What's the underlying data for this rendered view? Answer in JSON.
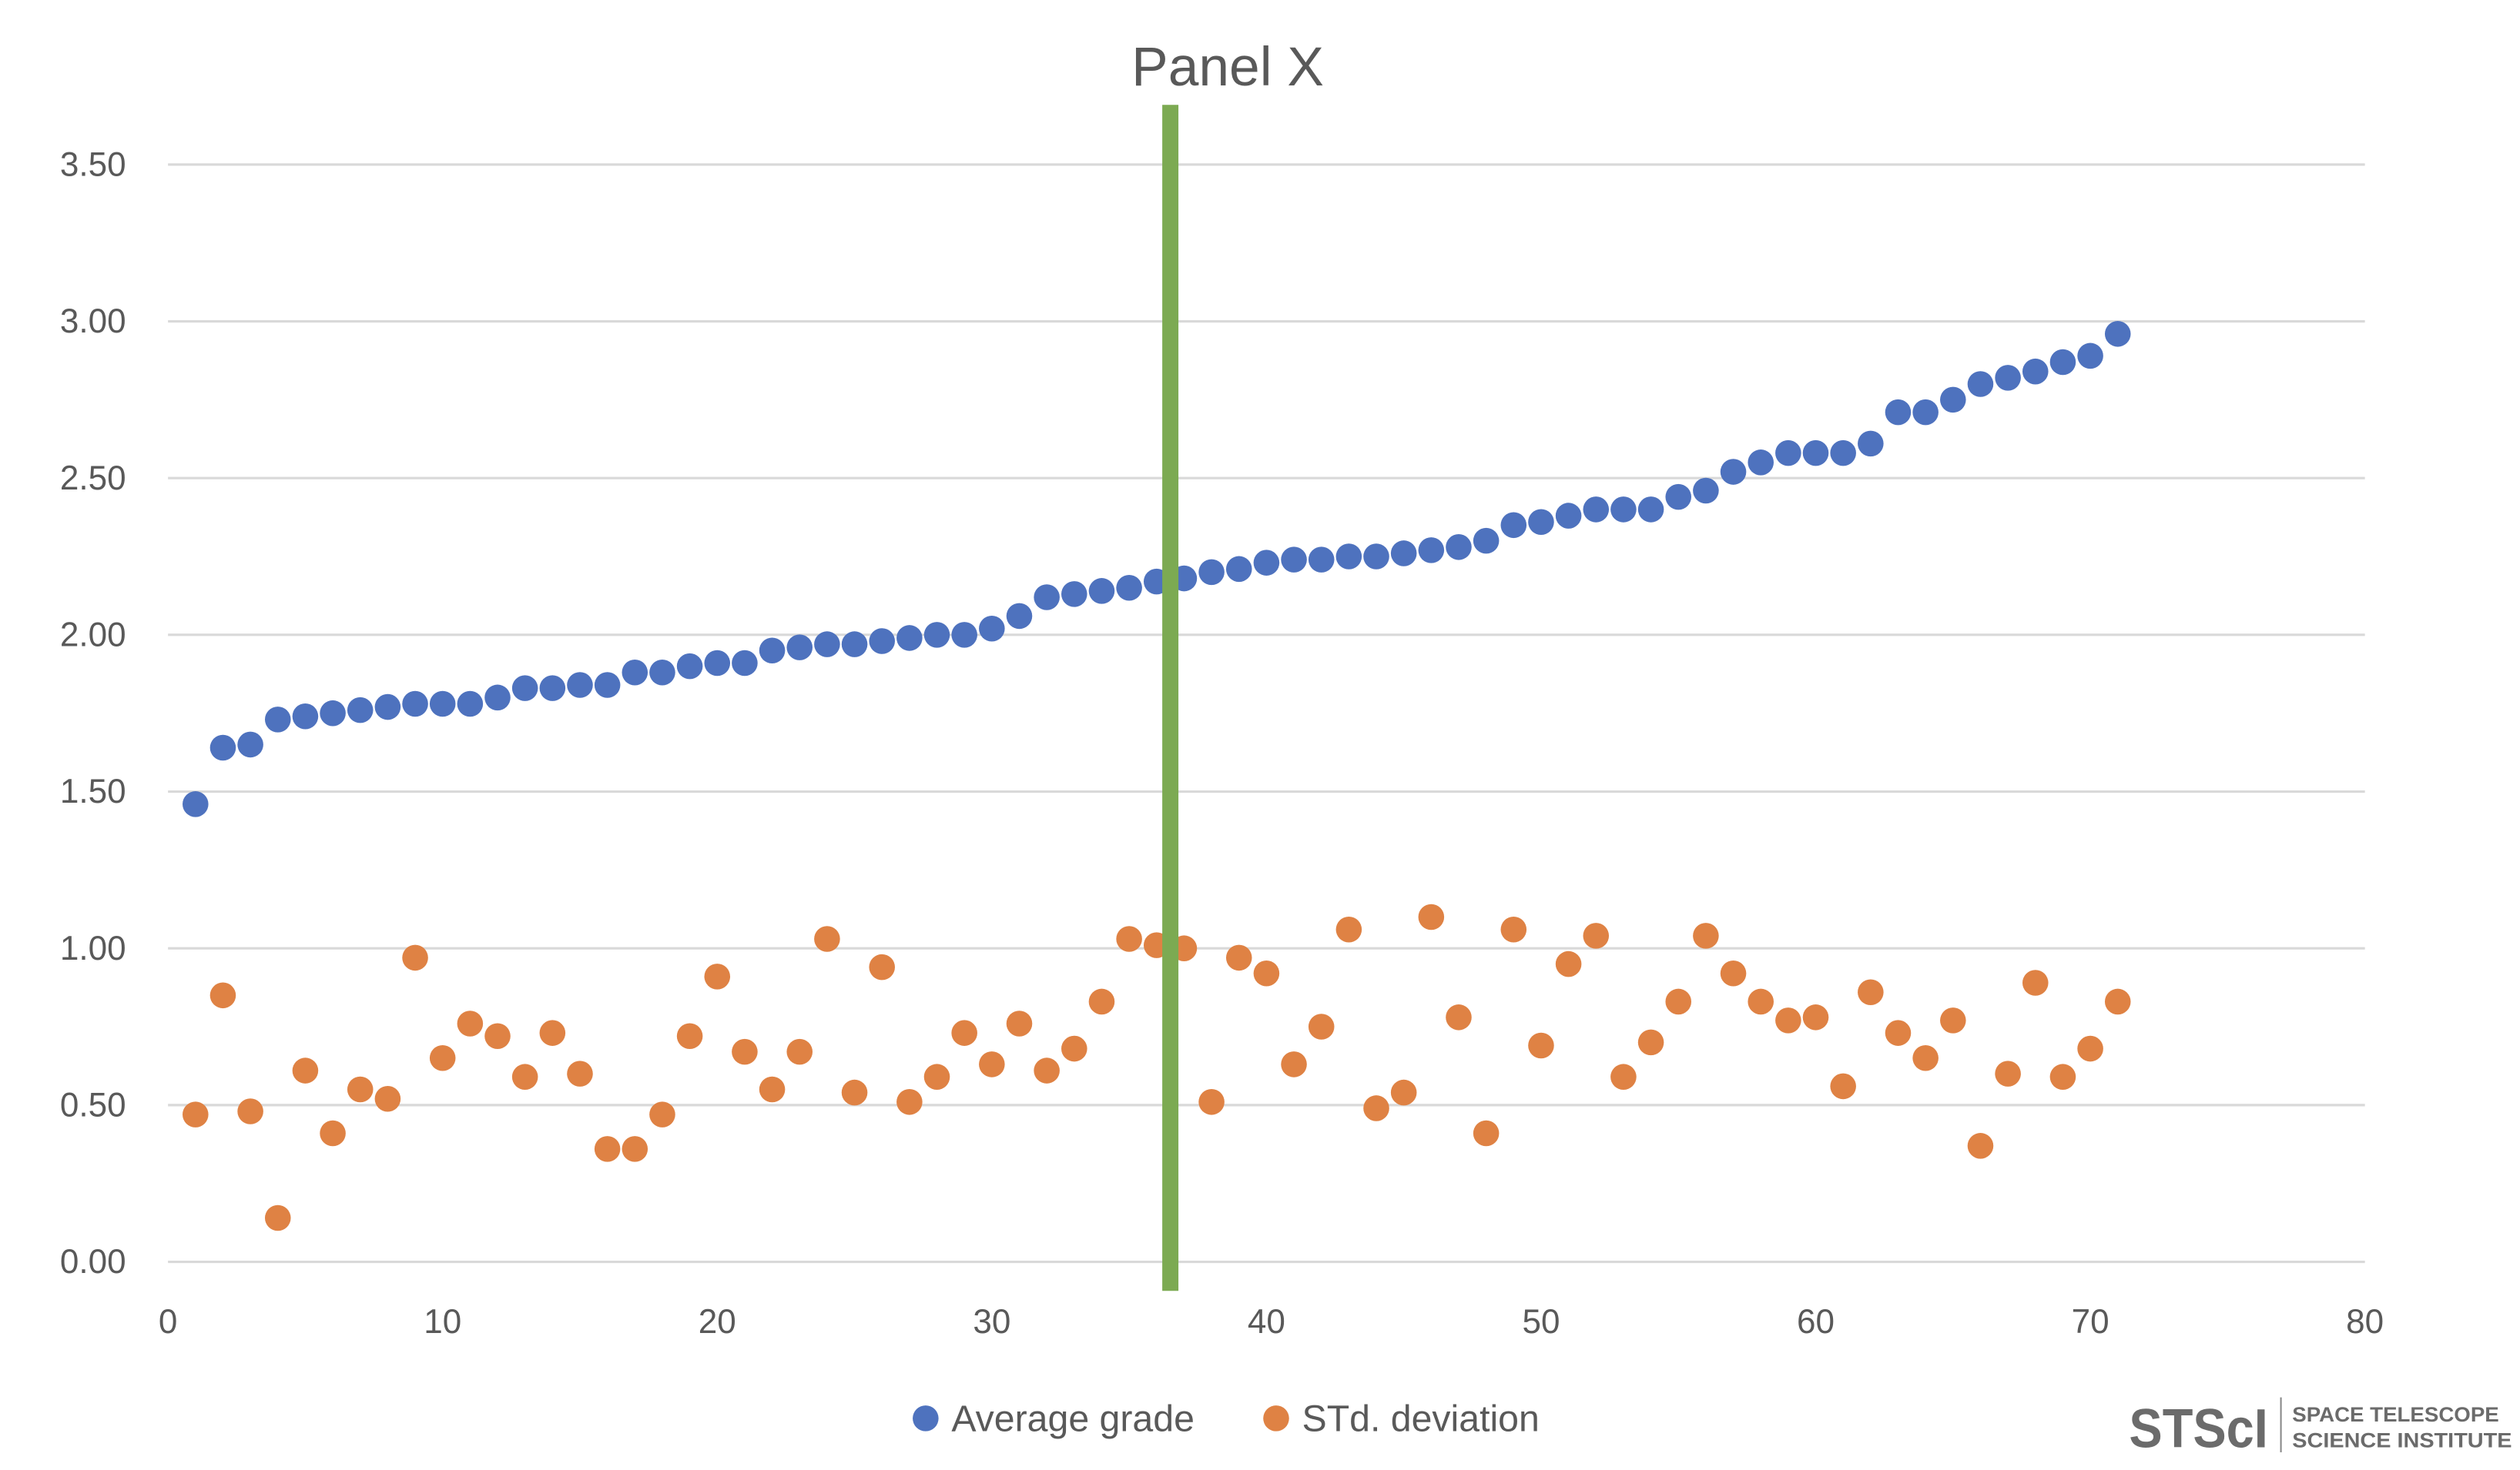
{
  "chart_data": {
    "type": "scatter",
    "title": "Panel X",
    "xlabel": "",
    "ylabel": "",
    "xlim": [
      0,
      80
    ],
    "ylim": [
      0,
      3.5
    ],
    "x_ticks": [
      "0",
      "10",
      "20",
      "30",
      "40",
      "50",
      "60",
      "70",
      "80"
    ],
    "x_tick_values": [
      0,
      10,
      20,
      30,
      40,
      50,
      60,
      70,
      80
    ],
    "y_ticks": [
      "0.00",
      "0.50",
      "1.00",
      "1.50",
      "2.00",
      "2.50",
      "3.00",
      "3.50"
    ],
    "y_tick_values": [
      0,
      0.5,
      1.0,
      1.5,
      2.0,
      2.5,
      3.0,
      3.5
    ],
    "grid": true,
    "legend_position": "bottom-center",
    "vertical_marker": {
      "x": 36.5,
      "color": "#7CAA52"
    },
    "series": [
      {
        "name": "Average grade",
        "color": "#4E72BE",
        "x": [
          1,
          2,
          3,
          4,
          5,
          6,
          7,
          8,
          9,
          10,
          11,
          12,
          13,
          14,
          15,
          16,
          17,
          18,
          19,
          20,
          21,
          22,
          23,
          24,
          25,
          26,
          27,
          28,
          29,
          30,
          31,
          32,
          33,
          34,
          35,
          36,
          37,
          38,
          39,
          40,
          41,
          42,
          43,
          44,
          45,
          46,
          47,
          48,
          49,
          50,
          51,
          52,
          53,
          54,
          55,
          56,
          57,
          58,
          59,
          60,
          61,
          62,
          63,
          64,
          65,
          66,
          67,
          68,
          69,
          70,
          71
        ],
        "y": [
          1.46,
          1.64,
          1.65,
          1.73,
          1.74,
          1.75,
          1.76,
          1.77,
          1.78,
          1.78,
          1.78,
          1.8,
          1.83,
          1.83,
          1.84,
          1.84,
          1.88,
          1.88,
          1.9,
          1.91,
          1.91,
          1.95,
          1.96,
          1.97,
          1.97,
          1.98,
          1.99,
          2.0,
          2.0,
          2.02,
          2.06,
          2.12,
          2.13,
          2.14,
          2.15,
          2.17,
          2.18,
          2.2,
          2.21,
          2.23,
          2.24,
          2.24,
          2.25,
          2.25,
          2.26,
          2.27,
          2.28,
          2.3,
          2.35,
          2.36,
          2.38,
          2.4,
          2.4,
          2.4,
          2.44,
          2.46,
          2.52,
          2.55,
          2.58,
          2.58,
          2.58,
          2.61,
          2.71,
          2.71,
          2.75,
          2.8,
          2.82,
          2.84,
          2.87,
          2.89,
          2.96
        ]
      },
      {
        "name": "STd. deviation",
        "color": "#DF8244",
        "x": [
          1,
          2,
          3,
          4,
          5,
          6,
          7,
          8,
          9,
          10,
          11,
          12,
          13,
          14,
          15,
          16,
          17,
          18,
          19,
          20,
          21,
          22,
          23,
          24,
          25,
          26,
          27,
          28,
          29,
          30,
          31,
          32,
          33,
          34,
          35,
          36,
          37,
          38,
          39,
          40,
          41,
          42,
          43,
          44,
          45,
          46,
          47,
          48,
          49,
          50,
          51,
          52,
          53,
          54,
          55,
          56,
          57,
          58,
          59,
          60,
          61,
          62,
          63,
          64,
          65,
          66,
          67,
          68,
          69,
          70,
          71
        ],
        "y": [
          0.47,
          0.85,
          0.48,
          0.14,
          0.61,
          0.41,
          0.55,
          0.52,
          0.97,
          0.65,
          0.76,
          0.72,
          0.59,
          0.73,
          0.6,
          0.36,
          0.36,
          0.47,
          0.72,
          0.91,
          0.67,
          0.55,
          0.67,
          1.03,
          0.54,
          0.94,
          0.51,
          0.59,
          0.73,
          0.63,
          0.76,
          0.61,
          0.68,
          0.83,
          1.03,
          1.01,
          1.0,
          0.51,
          0.97,
          0.92,
          0.63,
          0.75,
          1.06,
          0.49,
          0.54,
          1.1,
          0.78,
          0.41,
          1.06,
          0.69,
          0.95,
          1.04,
          0.59,
          0.7,
          0.83,
          1.04,
          0.92,
          0.83,
          0.77,
          0.78,
          0.56,
          0.86,
          0.73,
          0.65,
          0.77,
          0.37,
          0.6,
          0.89,
          0.59,
          0.68,
          0.83
        ]
      }
    ]
  },
  "legend": {
    "items": [
      "Average grade",
      "STd. deviation"
    ]
  },
  "logo": {
    "mark": "STScI",
    "line1": "SPACE TELESCOPE",
    "line2": "SCIENCE INSTITUTE"
  }
}
